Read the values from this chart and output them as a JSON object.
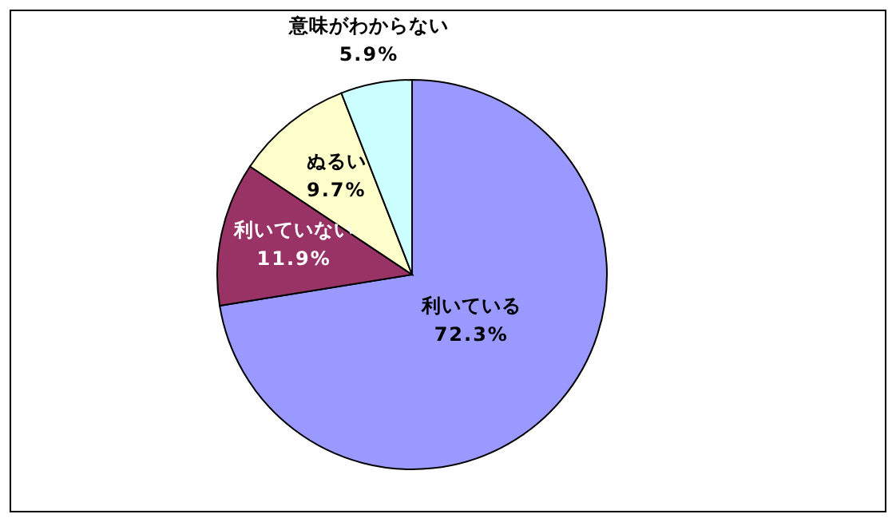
{
  "chart_data": {
    "type": "pie",
    "categories": [
      "利いている",
      "利いていない",
      "ぬるい",
      "意味がわからない"
    ],
    "values": [
      72.3,
      11.9,
      9.7,
      5.9
    ],
    "colors": [
      "#9999ff",
      "#993366",
      "#ffffcc",
      "#ccffff"
    ],
    "value_labels": [
      "72.3%",
      "11.9%",
      "9.7%",
      "5.9%"
    ]
  }
}
